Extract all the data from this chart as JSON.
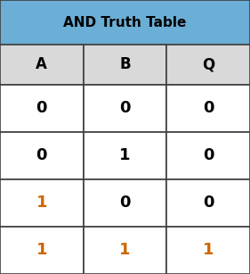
{
  "title": "AND Truth Table",
  "title_bg_color": "#6BAED6",
  "title_text_color": "#000000",
  "header_bg_color": "#D9D9D9",
  "header_text_color": "#000000",
  "cell_bg_color": "#FFFFFF",
  "border_color": "#404040",
  "columns": [
    "A",
    "B",
    "Q"
  ],
  "rows": [
    [
      "0",
      "0",
      "0"
    ],
    [
      "0",
      "1",
      "0"
    ],
    [
      "1",
      "0",
      "0"
    ],
    [
      "1",
      "1",
      "1"
    ]
  ],
  "row_colors": [
    [
      "#000000",
      "#000000",
      "#000000"
    ],
    [
      "#000000",
      "#000000",
      "#000000"
    ],
    [
      "#CC6600",
      "#000000",
      "#000000"
    ],
    [
      "#CC6600",
      "#CC6600",
      "#CC6600"
    ]
  ],
  "figsize": [
    2.81,
    3.07
  ],
  "dpi": 100,
  "title_fontsize": 11,
  "header_fontsize": 12,
  "cell_fontsize": 13
}
